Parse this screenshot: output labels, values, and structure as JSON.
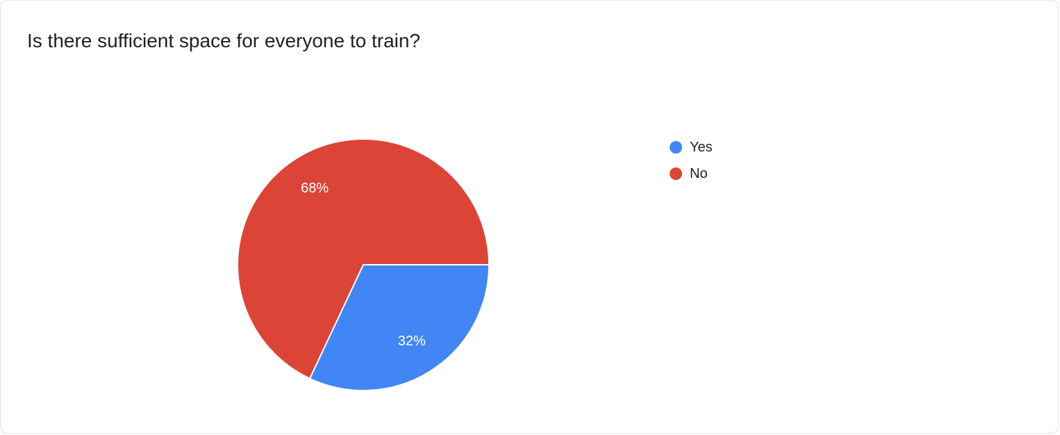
{
  "card": {
    "title": "Is there sufficient space for everyone to train?"
  },
  "chart_data": {
    "type": "pie",
    "title": "Is there sufficient space for everyone to train?",
    "categories": [
      "Yes",
      "No"
    ],
    "values": [
      32,
      68
    ],
    "slice_labels": [
      "32%",
      "68%"
    ],
    "colors": [
      "#4285f4",
      "#db4437"
    ],
    "label_color": "#ffffff",
    "legend_position": "right",
    "start_angle_deg": 0,
    "direction": "clockwise"
  }
}
